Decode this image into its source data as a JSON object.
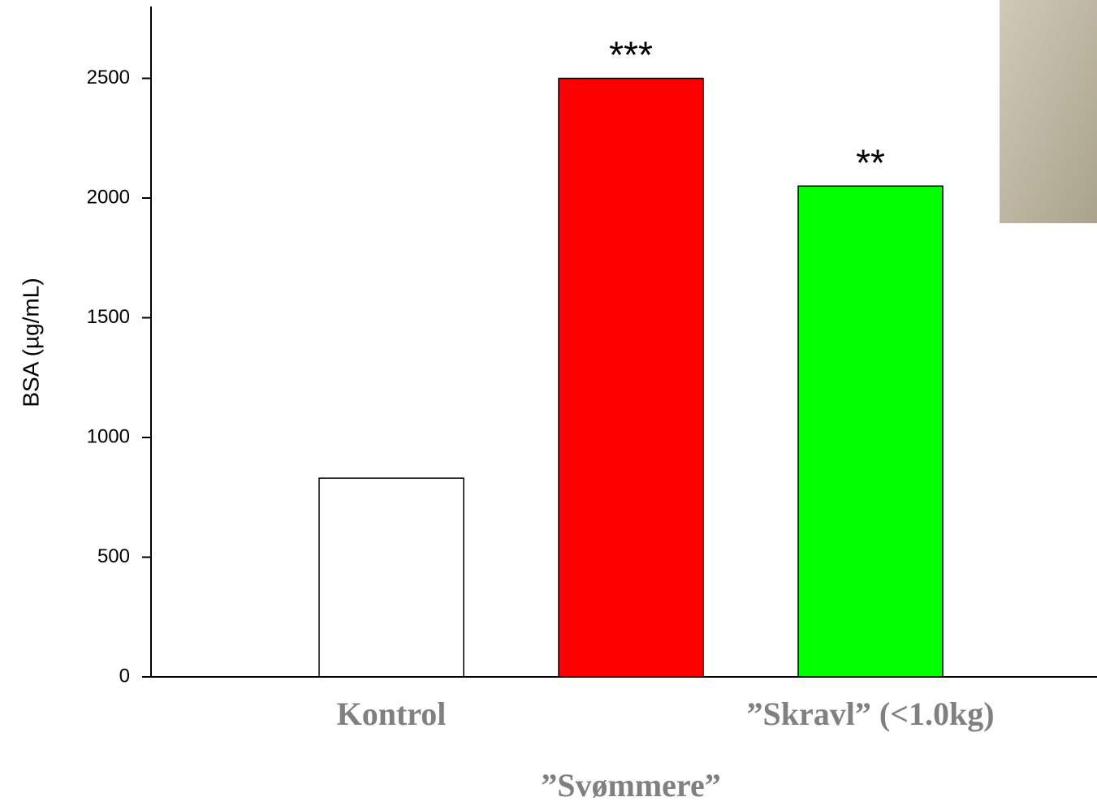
{
  "chart_data": {
    "type": "bar",
    "y_label": "BSA (µg/mL)",
    "categories": [
      "Kontrol",
      "”Svømmere”",
      "”Skravl” (<1.0kg)"
    ],
    "values": [
      830,
      2500,
      2050
    ],
    "colors": [
      "#ffffff",
      "#ff0000",
      "#00ff00"
    ],
    "significance": [
      null,
      "***",
      "**"
    ],
    "ylim": [
      0,
      2800
    ],
    "yticks": [
      0,
      500,
      1000,
      1500,
      2000,
      2500
    ],
    "grid": false
  }
}
